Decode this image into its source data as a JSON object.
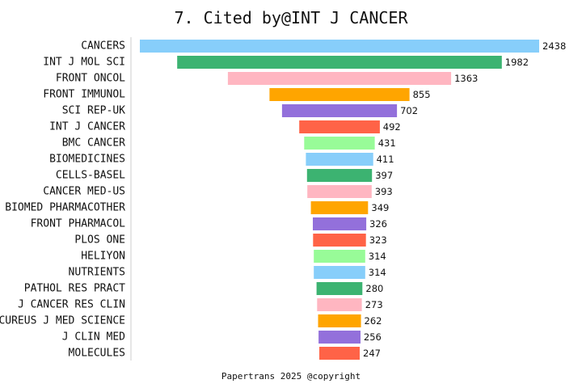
{
  "chart_data": {
    "type": "bar",
    "orientation": "horizontal",
    "layout": "centered-funnel",
    "title": "7. Cited by@INT J CANCER",
    "footer": "Papertrans 2025 @copyright",
    "xlabel": "",
    "ylabel": "",
    "grid": false,
    "legend": "none",
    "categories": [
      "CANCERS",
      "INT J MOL SCI",
      "FRONT ONCOL",
      "FRONT IMMUNOL",
      "SCI REP-UK",
      "INT J CANCER",
      "BMC CANCER",
      "BIOMEDICINES",
      "CELLS-BASEL",
      "CANCER MED-US",
      "BIOMED PHARMACOTHER",
      "FRONT PHARMACOL",
      "PLOS ONE",
      "HELIYON",
      "NUTRIENTS",
      "PATHOL RES PRACT",
      "J CANCER RES CLIN",
      "CUREUS J MED SCIENCE",
      "J CLIN MED",
      "MOLECULES"
    ],
    "values": [
      2438,
      1982,
      1363,
      855,
      702,
      492,
      431,
      411,
      397,
      393,
      349,
      326,
      323,
      314,
      314,
      280,
      273,
      262,
      256,
      247
    ],
    "colors": [
      "#87CEFA",
      "#3CB371",
      "#FFB6C1",
      "#FFA500",
      "#9370DB",
      "#FF6347",
      "#98FB98"
    ]
  }
}
